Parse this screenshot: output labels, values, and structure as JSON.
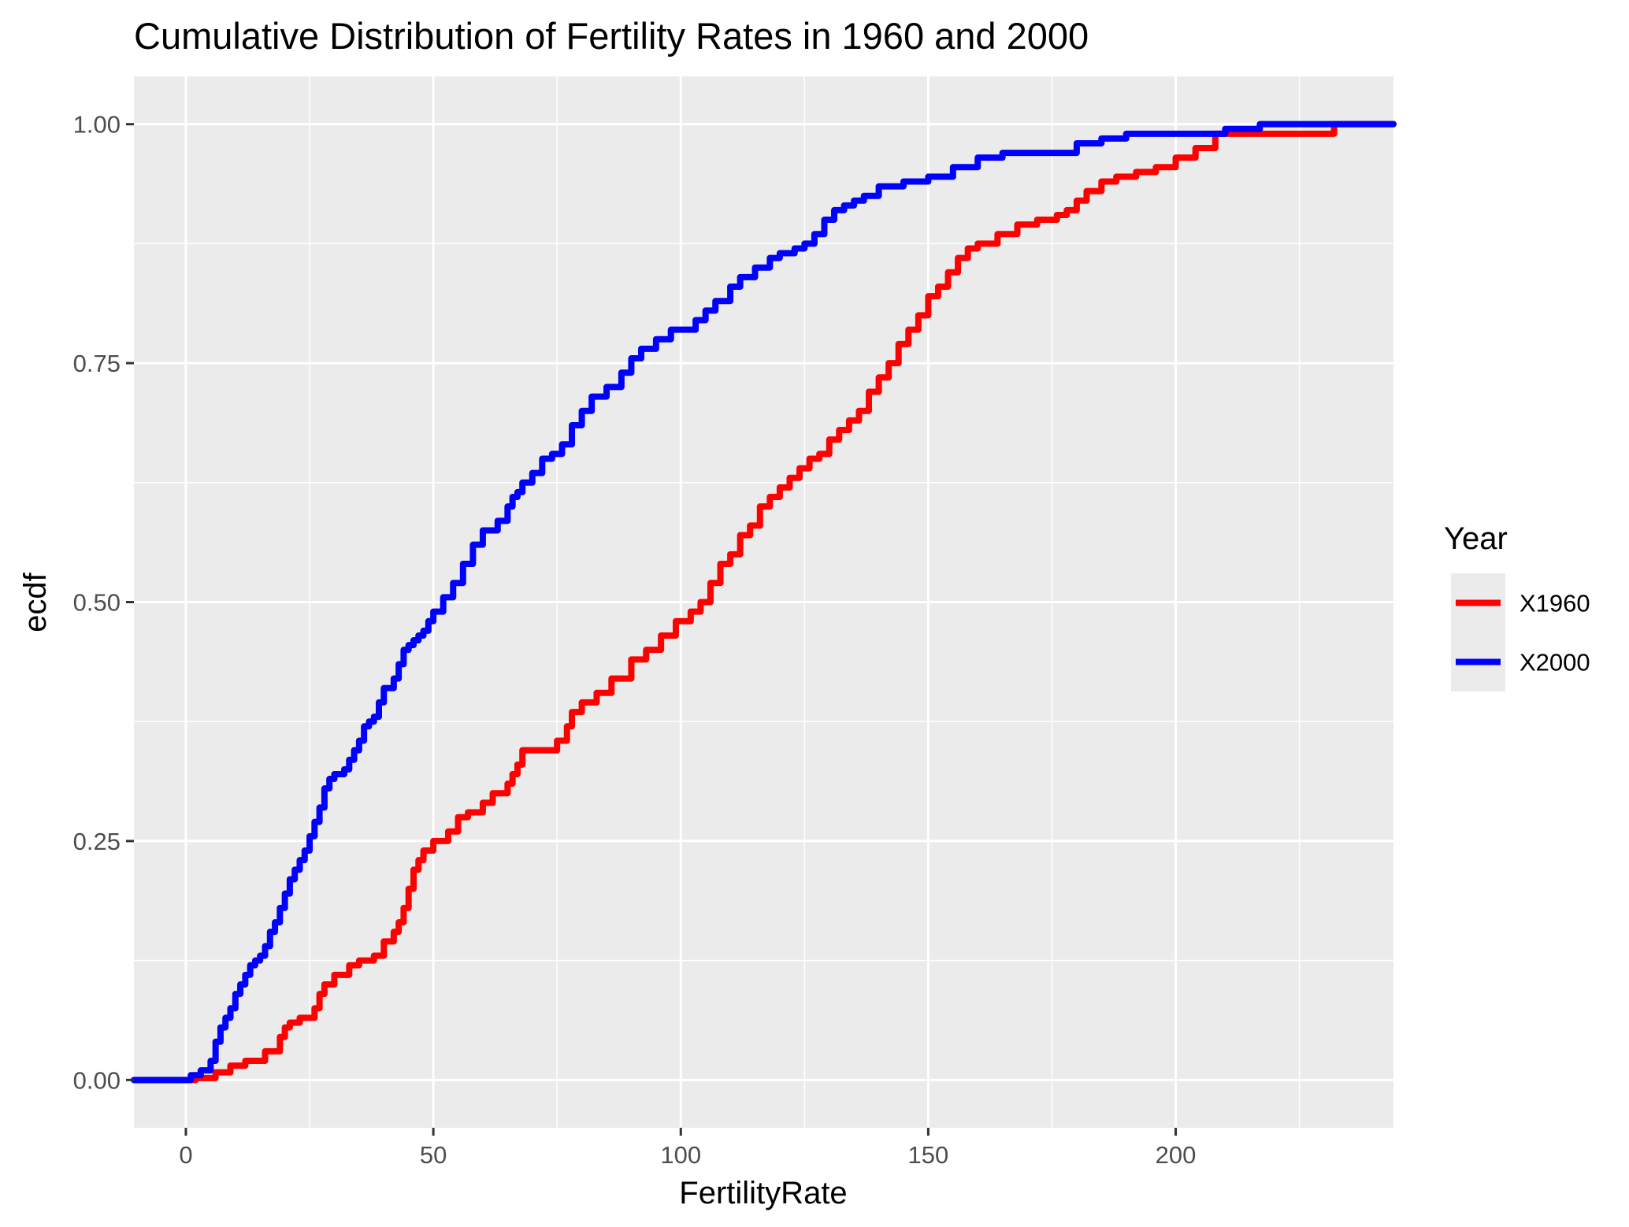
{
  "chart_data": {
    "type": "line",
    "step": true,
    "title": "Cumulative Distribution of Fertility Rates in 1960 and 2000",
    "xlabel": "FertilityRate",
    "ylabel": "ecdf",
    "xlim": [
      -10.5,
      244
    ],
    "ylim": [
      -0.05,
      1.05
    ],
    "xticks": [
      0,
      50,
      100,
      150,
      200
    ],
    "xtick_labels": [
      "0",
      "50",
      "100",
      "150",
      "200"
    ],
    "yticks": [
      0,
      0.25,
      0.5,
      0.75,
      1
    ],
    "ytick_labels": [
      "0.00",
      "0.25",
      "0.50",
      "0.75",
      "1.00"
    ],
    "grid": true,
    "background": "#EBEBEB",
    "legend": {
      "title": "Year",
      "position": "right"
    },
    "series": [
      {
        "name": "X1960",
        "color": "#FF0000",
        "x": [
          -10.5,
          2,
          6,
          9,
          12,
          16,
          19,
          20,
          21,
          23,
          25,
          26,
          27,
          28,
          30,
          33,
          35,
          38,
          40,
          42,
          43,
          44,
          45,
          46,
          47,
          48,
          50,
          53,
          55,
          57,
          60,
          62,
          65,
          66,
          67,
          68,
          70,
          75,
          77,
          78,
          80,
          83,
          86,
          90,
          93,
          96,
          99,
          102,
          104,
          106,
          108,
          110,
          112,
          114,
          116,
          118,
          120,
          122,
          124,
          126,
          128,
          130,
          132,
          134,
          136,
          138,
          140,
          142,
          144,
          146,
          148,
          150,
          152,
          154,
          156,
          158,
          160,
          164,
          168,
          172,
          176,
          178,
          180,
          182,
          185,
          188,
          192,
          196,
          200,
          204,
          208,
          225,
          232,
          244
        ],
        "y": [
          0,
          0.002,
          0.008,
          0.015,
          0.02,
          0.03,
          0.045,
          0.055,
          0.06,
          0.065,
          0.065,
          0.075,
          0.09,
          0.1,
          0.11,
          0.12,
          0.125,
          0.13,
          0.145,
          0.155,
          0.165,
          0.18,
          0.2,
          0.22,
          0.23,
          0.24,
          0.25,
          0.26,
          0.275,
          0.28,
          0.29,
          0.3,
          0.31,
          0.32,
          0.33,
          0.345,
          0.345,
          0.355,
          0.37,
          0.385,
          0.395,
          0.405,
          0.42,
          0.44,
          0.45,
          0.465,
          0.48,
          0.49,
          0.5,
          0.52,
          0.54,
          0.55,
          0.57,
          0.58,
          0.6,
          0.61,
          0.62,
          0.63,
          0.64,
          0.65,
          0.655,
          0.67,
          0.68,
          0.69,
          0.7,
          0.72,
          0.735,
          0.75,
          0.77,
          0.785,
          0.8,
          0.82,
          0.83,
          0.845,
          0.86,
          0.87,
          0.875,
          0.885,
          0.895,
          0.9,
          0.905,
          0.91,
          0.92,
          0.93,
          0.94,
          0.945,
          0.95,
          0.955,
          0.965,
          0.975,
          0.99,
          0.99,
          1,
          1
        ]
      },
      {
        "name": "X2000",
        "color": "#0000FF",
        "x": [
          -10.5,
          1,
          3,
          5,
          6,
          7,
          8,
          9,
          10,
          11,
          12,
          13,
          14,
          15,
          16,
          17,
          18,
          19,
          20,
          21,
          22,
          23,
          24,
          25,
          26,
          27,
          28,
          29,
          30,
          32,
          33,
          34,
          35,
          36,
          37,
          38,
          39,
          40,
          42,
          43,
          44,
          45,
          46,
          47,
          48,
          49,
          50,
          52,
          54,
          56,
          58,
          60,
          63,
          65,
          66,
          67,
          68,
          70,
          72,
          74,
          76,
          78,
          80,
          82,
          85,
          88,
          90,
          92,
          95,
          98,
          100,
          103,
          105,
          107,
          110,
          112,
          115,
          118,
          120,
          123,
          125,
          127,
          129,
          131,
          133,
          135,
          137,
          140,
          145,
          150,
          155,
          160,
          165,
          170,
          180,
          185,
          190,
          195,
          200,
          210,
          217,
          244
        ],
        "y": [
          0,
          0.005,
          0.01,
          0.02,
          0.04,
          0.055,
          0.065,
          0.075,
          0.09,
          0.1,
          0.11,
          0.12,
          0.125,
          0.13,
          0.14,
          0.155,
          0.165,
          0.18,
          0.195,
          0.21,
          0.22,
          0.23,
          0.24,
          0.255,
          0.27,
          0.285,
          0.305,
          0.315,
          0.32,
          0.325,
          0.335,
          0.345,
          0.355,
          0.37,
          0.375,
          0.38,
          0.395,
          0.41,
          0.42,
          0.435,
          0.45,
          0.455,
          0.46,
          0.465,
          0.47,
          0.48,
          0.49,
          0.505,
          0.52,
          0.54,
          0.56,
          0.575,
          0.585,
          0.6,
          0.61,
          0.615,
          0.625,
          0.635,
          0.65,
          0.655,
          0.665,
          0.685,
          0.7,
          0.715,
          0.725,
          0.74,
          0.755,
          0.765,
          0.775,
          0.785,
          0.785,
          0.795,
          0.805,
          0.815,
          0.83,
          0.84,
          0.85,
          0.86,
          0.865,
          0.87,
          0.875,
          0.885,
          0.9,
          0.91,
          0.915,
          0.92,
          0.925,
          0.935,
          0.94,
          0.945,
          0.955,
          0.965,
          0.97,
          0.97,
          0.98,
          0.985,
          0.99,
          0.99,
          0.99,
          0.995,
          1,
          1
        ]
      }
    ]
  }
}
